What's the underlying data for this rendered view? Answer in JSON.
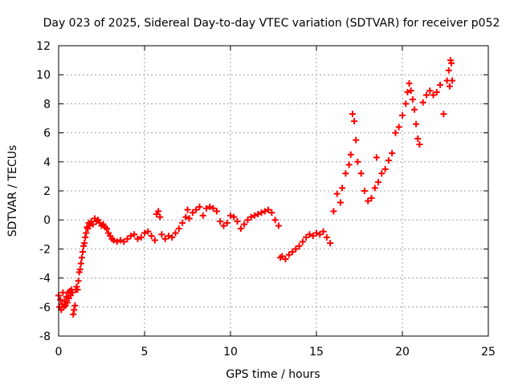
{
  "chart_data": {
    "type": "scatter",
    "title": "Day 023 of 2025, Sidereal Day-to-day VTEC variation (SDTVAR) for receiver p052",
    "xlabel": "GPS time / hours",
    "ylabel": "SDTVAR / TECUs",
    "xlim": [
      0,
      25
    ],
    "ylim": [
      -8,
      12
    ],
    "xticks": [
      "0",
      "5",
      "10",
      "15",
      "20",
      "25"
    ],
    "yticks": [
      "-8",
      "-6",
      "-4",
      "-2",
      "0",
      "2",
      "4",
      "6",
      "8",
      "10",
      "12"
    ],
    "grid": true,
    "legend": "none",
    "marker": "plus",
    "color": "#ff0000",
    "series": [
      {
        "points": [
          [
            0.0,
            -5.2
          ],
          [
            0.05,
            -6.0
          ],
          [
            0.1,
            -5.5
          ],
          [
            0.15,
            -6.2
          ],
          [
            0.2,
            -5.8
          ],
          [
            0.25,
            -5.0
          ],
          [
            0.3,
            -6.0
          ],
          [
            0.35,
            -5.6
          ],
          [
            0.4,
            -5.9
          ],
          [
            0.45,
            -5.3
          ],
          [
            0.5,
            -5.7
          ],
          [
            0.55,
            -5.0
          ],
          [
            0.6,
            -5.4
          ],
          [
            0.65,
            -4.9
          ],
          [
            0.7,
            -5.2
          ],
          [
            0.75,
            -4.8
          ],
          [
            0.8,
            -5.0
          ],
          [
            0.85,
            -6.5
          ],
          [
            0.9,
            -6.2
          ],
          [
            0.95,
            -5.9
          ],
          [
            1.0,
            -4.8
          ],
          [
            1.05,
            -4.6
          ],
          [
            1.1,
            -4.8
          ],
          [
            1.15,
            -4.2
          ],
          [
            1.2,
            -3.6
          ],
          [
            1.25,
            -3.4
          ],
          [
            1.3,
            -3.0
          ],
          [
            1.35,
            -2.6
          ],
          [
            1.4,
            -2.2
          ],
          [
            1.45,
            -1.8
          ],
          [
            1.5,
            -1.6
          ],
          [
            1.55,
            -1.2
          ],
          [
            1.6,
            -0.9
          ],
          [
            1.65,
            -0.5
          ],
          [
            1.7,
            -0.6
          ],
          [
            1.75,
            -0.2
          ],
          [
            1.8,
            -0.4
          ],
          [
            1.9,
            -0.1
          ],
          [
            2.0,
            -0.3
          ],
          [
            2.1,
            0.1
          ],
          [
            2.2,
            -0.1
          ],
          [
            2.3,
            0.0
          ],
          [
            2.4,
            -0.2
          ],
          [
            2.5,
            -0.4
          ],
          [
            2.6,
            -0.3
          ],
          [
            2.7,
            -0.5
          ],
          [
            2.8,
            -0.6
          ],
          [
            2.9,
            -0.9
          ],
          [
            3.0,
            -1.1
          ],
          [
            3.1,
            -1.3
          ],
          [
            3.2,
            -1.4
          ],
          [
            3.4,
            -1.5
          ],
          [
            3.6,
            -1.4
          ],
          [
            3.8,
            -1.5
          ],
          [
            4.0,
            -1.3
          ],
          [
            4.2,
            -1.1
          ],
          [
            4.4,
            -1.0
          ],
          [
            4.6,
            -1.3
          ],
          [
            4.8,
            -1.2
          ],
          [
            5.0,
            -0.9
          ],
          [
            5.2,
            -0.8
          ],
          [
            5.4,
            -1.1
          ],
          [
            5.6,
            -1.4
          ],
          [
            5.7,
            0.4
          ],
          [
            5.8,
            0.6
          ],
          [
            5.9,
            0.2
          ],
          [
            6.0,
            -1.0
          ],
          [
            6.2,
            -1.3
          ],
          [
            6.4,
            -1.1
          ],
          [
            6.6,
            -1.2
          ],
          [
            6.8,
            -0.9
          ],
          [
            7.0,
            -0.6
          ],
          [
            7.2,
            -0.2
          ],
          [
            7.4,
            0.2
          ],
          [
            7.5,
            0.7
          ],
          [
            7.6,
            0.1
          ],
          [
            7.8,
            0.5
          ],
          [
            8.0,
            0.7
          ],
          [
            8.2,
            0.9
          ],
          [
            8.4,
            0.3
          ],
          [
            8.6,
            0.8
          ],
          [
            8.8,
            0.9
          ],
          [
            9.0,
            0.8
          ],
          [
            9.2,
            0.6
          ],
          [
            9.4,
            -0.1
          ],
          [
            9.6,
            -0.4
          ],
          [
            9.8,
            -0.2
          ],
          [
            10.0,
            0.3
          ],
          [
            10.2,
            0.2
          ],
          [
            10.4,
            -0.1
          ],
          [
            10.6,
            -0.6
          ],
          [
            10.8,
            -0.3
          ],
          [
            11.0,
            0.0
          ],
          [
            11.2,
            0.2
          ],
          [
            11.4,
            0.3
          ],
          [
            11.6,
            0.4
          ],
          [
            11.8,
            0.5
          ],
          [
            12.0,
            0.6
          ],
          [
            12.2,
            0.7
          ],
          [
            12.4,
            0.5
          ],
          [
            12.6,
            0.0
          ],
          [
            12.8,
            -0.4
          ],
          [
            12.9,
            -2.6
          ],
          [
            13.0,
            -2.5
          ],
          [
            13.2,
            -2.7
          ],
          [
            13.4,
            -2.4
          ],
          [
            13.6,
            -2.2
          ],
          [
            13.8,
            -2.0
          ],
          [
            14.0,
            -1.8
          ],
          [
            14.2,
            -1.5
          ],
          [
            14.4,
            -1.2
          ],
          [
            14.6,
            -1.0
          ],
          [
            14.8,
            -1.1
          ],
          [
            15.0,
            -0.9
          ],
          [
            15.2,
            -1.0
          ],
          [
            15.4,
            -0.8
          ],
          [
            15.6,
            -1.2
          ],
          [
            15.8,
            -1.6
          ],
          [
            16.0,
            0.6
          ],
          [
            16.2,
            1.8
          ],
          [
            16.4,
            1.2
          ],
          [
            16.5,
            2.2
          ],
          [
            16.7,
            3.2
          ],
          [
            16.9,
            3.8
          ],
          [
            17.0,
            4.5
          ],
          [
            17.1,
            7.3
          ],
          [
            17.2,
            6.8
          ],
          [
            17.3,
            5.5
          ],
          [
            17.4,
            4.0
          ],
          [
            17.6,
            3.2
          ],
          [
            17.8,
            2.0
          ],
          [
            18.0,
            1.3
          ],
          [
            18.2,
            1.5
          ],
          [
            18.4,
            2.2
          ],
          [
            18.5,
            4.3
          ],
          [
            18.6,
            2.6
          ],
          [
            18.8,
            3.2
          ],
          [
            19.0,
            3.5
          ],
          [
            19.2,
            4.1
          ],
          [
            19.4,
            4.6
          ],
          [
            19.6,
            6.0
          ],
          [
            19.8,
            6.4
          ],
          [
            20.0,
            7.2
          ],
          [
            20.2,
            8.0
          ],
          [
            20.3,
            8.8
          ],
          [
            20.4,
            9.4
          ],
          [
            20.5,
            8.9
          ],
          [
            20.6,
            8.3
          ],
          [
            20.7,
            7.6
          ],
          [
            20.8,
            6.6
          ],
          [
            20.9,
            5.6
          ],
          [
            21.0,
            5.2
          ],
          [
            21.2,
            8.1
          ],
          [
            21.4,
            8.6
          ],
          [
            21.6,
            8.9
          ],
          [
            21.8,
            8.6
          ],
          [
            22.0,
            8.8
          ],
          [
            22.2,
            9.3
          ],
          [
            22.4,
            7.3
          ],
          [
            22.6,
            9.6
          ],
          [
            22.7,
            10.3
          ],
          [
            22.8,
            11.0
          ],
          [
            22.9,
            9.6
          ],
          [
            22.85,
            10.8
          ],
          [
            22.75,
            9.2
          ]
        ]
      }
    ]
  }
}
